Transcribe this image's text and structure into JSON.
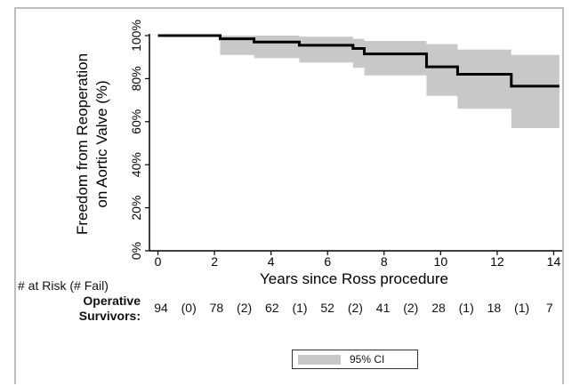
{
  "chart_data": {
    "type": "line",
    "title": "",
    "xlabel": "Years since Ross procedure",
    "ylabel": [
      "Freedom from Reoperation",
      "on Aortic Valve (%)"
    ],
    "xlim": [
      -0.3,
      14.3
    ],
    "ylim": [
      0,
      100
    ],
    "xticks": [
      "0",
      "2",
      "4",
      "6",
      "8",
      "10",
      "12",
      "14"
    ],
    "yticks": [
      "0%",
      "20%",
      "40%",
      "60%",
      "80%",
      "100%"
    ],
    "series": [
      {
        "estimate": [
          [
            0,
            100
          ],
          [
            2.2,
            100
          ],
          [
            2.2,
            98.5
          ],
          [
            3.4,
            98.5
          ],
          [
            3.4,
            97
          ],
          [
            5,
            97
          ],
          [
            5,
            95.5
          ],
          [
            6.9,
            95.5
          ],
          [
            6.9,
            94
          ],
          [
            7.3,
            94
          ],
          [
            7.3,
            91.5
          ],
          [
            9.5,
            91.5
          ],
          [
            9.5,
            85.5
          ],
          [
            10.6,
            85.5
          ],
          [
            10.6,
            82
          ],
          [
            12.5,
            82
          ],
          [
            12.5,
            76.5
          ],
          [
            14.2,
            76.5
          ]
        ],
        "ci_upper": [
          [
            2.2,
            100
          ],
          [
            3.4,
            100
          ],
          [
            5,
            99.5
          ],
          [
            6.9,
            98.5
          ],
          [
            7.3,
            97.5
          ],
          [
            9.5,
            96
          ],
          [
            10.6,
            93.5
          ],
          [
            12.5,
            91
          ],
          [
            14.2,
            88.5
          ]
        ],
        "ci_lower": [
          [
            2.2,
            91
          ],
          [
            3.4,
            89.5
          ],
          [
            5,
            87.5
          ],
          [
            6.9,
            85
          ],
          [
            7.3,
            81.5
          ],
          [
            9.5,
            72
          ],
          [
            10.6,
            66
          ],
          [
            12.5,
            57
          ],
          [
            14.2,
            57
          ]
        ]
      }
    ],
    "legend": {
      "position": "bottom-center",
      "entries": [
        {
          "label": "95% CI",
          "color": "#c8c8c8"
        }
      ]
    },
    "grid": false,
    "colors": {
      "line": "#000000",
      "ci": "#c8c8c8"
    }
  },
  "risk_table": {
    "title": "# at Risk (# Fail)",
    "group_label_line1": "Operative",
    "group_label_line2": "Survivors:",
    "cells": [
      {
        "x": 0,
        "text": "94"
      },
      {
        "x": 1,
        "text": "(0)"
      },
      {
        "x": 2,
        "text": "78"
      },
      {
        "x": 3,
        "text": "(2)"
      },
      {
        "x": 4,
        "text": "62"
      },
      {
        "x": 5,
        "text": "(1)"
      },
      {
        "x": 6,
        "text": "52"
      },
      {
        "x": 7,
        "text": "(2)"
      },
      {
        "x": 8,
        "text": "41"
      },
      {
        "x": 9,
        "text": "(2)"
      },
      {
        "x": 10,
        "text": "28"
      },
      {
        "x": 11,
        "text": "(1)"
      },
      {
        "x": 12,
        "text": "18"
      },
      {
        "x": 13,
        "text": "(1)"
      },
      {
        "x": 14,
        "text": "7"
      }
    ]
  }
}
